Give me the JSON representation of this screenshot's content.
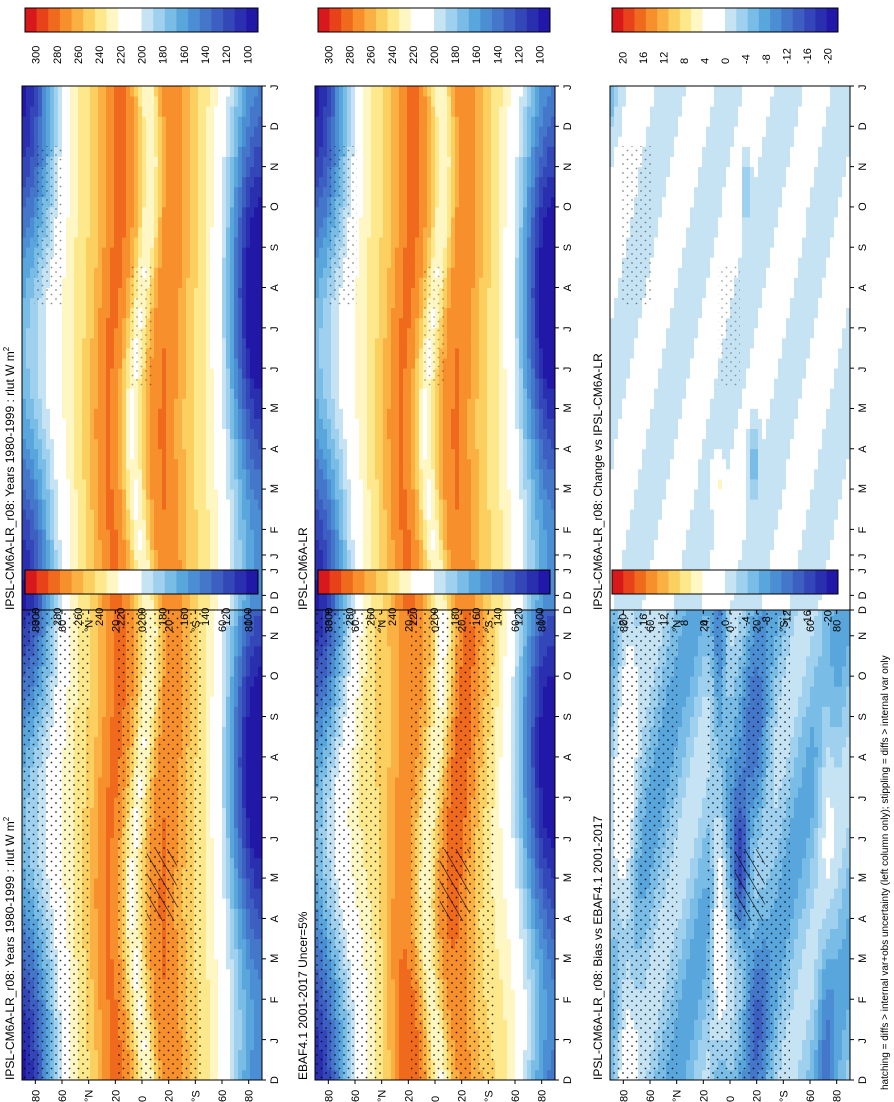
{
  "footer": "hatching = diffs > internal var+obs uncertainty (left column only); stippling = diffs > internal var only",
  "months": [
    "D",
    "J",
    "F",
    "M",
    "A",
    "M",
    "J",
    "J",
    "A",
    "S",
    "O",
    "N",
    "D",
    "J"
  ],
  "lat_ticks": [
    "80",
    "60",
    "°N",
    "20",
    "0",
    "20",
    "°S",
    "60",
    "80"
  ],
  "colorbars": {
    "abs": {
      "labels": [
        "300",
        "280",
        "260",
        "240",
        "220",
        "200",
        "180",
        "160",
        "140",
        "120",
        "100"
      ],
      "colors": [
        "#d7191c",
        "#e8421a",
        "#f06a1e",
        "#f78f2c",
        "#fab043",
        "#fcd060",
        "#fde98b",
        "#fef7c3",
        "#ffffff",
        "#ffffff",
        "#c6e3f4",
        "#9fd0ee",
        "#79bde6",
        "#58a6dc",
        "#4c8ed3",
        "#4476ca",
        "#3c5fc1",
        "#3347b8",
        "#2a2fb0",
        "#2118a8"
      ]
    },
    "diff": {
      "labels": [
        "20",
        "16",
        "12",
        "8",
        "4",
        "0",
        "-4",
        "-8",
        "-12",
        "-16",
        "-20"
      ],
      "colors": [
        "#d7191c",
        "#e8421a",
        "#f06a1e",
        "#f78f2c",
        "#fab043",
        "#fcd060",
        "#fde98b",
        "#fef7c3",
        "#ffffff",
        "#ffffff",
        "#c6e3f4",
        "#9fd0ee",
        "#79bde6",
        "#58a6dc",
        "#4c8ed3",
        "#4476ca",
        "#3c5fc1",
        "#3347b8",
        "#2a2fb0",
        "#2118a8"
      ]
    }
  },
  "panels": [
    {
      "title": "IPSL-CM6A-LR_r08: Years 1980-1999 : rlut W m",
      "superscript": "2",
      "kind": "abs",
      "stipple": "dense",
      "hatch": true
    },
    {
      "title": "EBAF4.1 2001-2017 Uncer=5%",
      "superscript": "",
      "kind": "abs_obs",
      "stipple": "dense",
      "hatch": true
    },
    {
      "title": "IPSL-CM6A-LR_r08: Bias vs EBAF4.1 2001-2017",
      "superscript": "",
      "kind": "bias",
      "stipple": "dense",
      "hatch": true
    },
    {
      "title": "IPSL-CM6A-LR_r08: Years 1980-1999 : rlut W m",
      "superscript": "2",
      "kind": "abs",
      "stipple": "sparse",
      "hatch": false
    },
    {
      "title": "IPSL-CM6A-LR",
      "superscript": "",
      "kind": "abs",
      "stipple": "sparse",
      "hatch": false
    },
    {
      "title": "IPSL-CM6A-LR_r08: Change vs IPSL-CM6A-LR",
      "superscript": "",
      "kind": "change",
      "stipple": "sparse",
      "hatch": false
    }
  ],
  "chart_data": [
    {
      "type": "heatmap",
      "title": "IPSL-CM6A-LR_r08: Years 1980-1999 : rlut W m2",
      "x": "month (D..J)",
      "y": "latitude 90N-90S",
      "z_range": [
        100,
        300
      ]
    },
    {
      "type": "heatmap",
      "title": "EBAF4.1 2001-2017 Uncer=5%",
      "x": "month (D..J)",
      "y": "latitude 90N-90S",
      "z_range": [
        100,
        300
      ]
    },
    {
      "type": "heatmap",
      "title": "IPSL-CM6A-LR_r08: Bias vs EBAF4.1 2001-2017",
      "x": "month (D..J)",
      "y": "latitude 90N-90S",
      "z_range": [
        -20,
        20
      ]
    },
    {
      "type": "heatmap",
      "title": "IPSL-CM6A-LR_r08: Years 1980-1999 : rlut W m2",
      "x": "month (D..J)",
      "y": "latitude 90N-90S",
      "z_range": [
        100,
        300
      ]
    },
    {
      "type": "heatmap",
      "title": "IPSL-CM6A-LR",
      "x": "month (D..J)",
      "y": "latitude 90N-90S",
      "z_range": [
        100,
        300
      ]
    },
    {
      "type": "heatmap",
      "title": "IPSL-CM6A-LR_r08: Change vs IPSL-CM6A-LR",
      "x": "month (D..J)",
      "y": "latitude 90N-90S",
      "z_range": [
        -20,
        20
      ]
    }
  ]
}
